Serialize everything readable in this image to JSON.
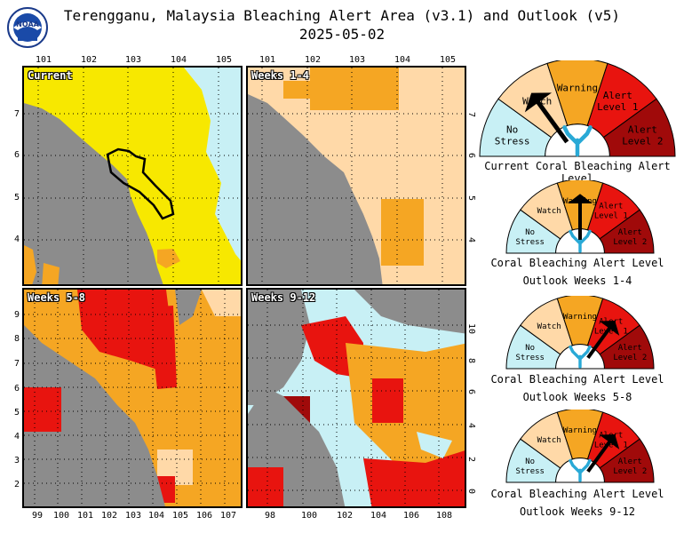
{
  "header": {
    "title": "Terengganu, Malaysia Bleaching Alert Area (v3.1) and Outlook (v5)",
    "date": "2025-05-02",
    "logo_text": "NOAA"
  },
  "colors": {
    "no_stress": "#c8f0f5",
    "watch": "#ffd9a8",
    "warning": "#f5a623",
    "alert1": "#e8140f",
    "alert2": "#a00a0a",
    "current_yellow": "#f7e800",
    "land": "#8c8c8c"
  },
  "panels": [
    {
      "label": "Current",
      "top_ticks": [
        "101",
        "102",
        "103",
        "104",
        "105"
      ],
      "left_ticks": [
        "7",
        "6",
        "5",
        "4"
      ]
    },
    {
      "label": "Weeks 1-4",
      "top_ticks": [
        "101",
        "102",
        "103",
        "104",
        "105"
      ],
      "right_ticks": [
        "7",
        "6",
        "5",
        "4"
      ]
    },
    {
      "label": "Weeks 5-8",
      "bottom_ticks": [
        "99",
        "100",
        "101",
        "102",
        "103",
        "104",
        "105",
        "106",
        "107"
      ],
      "left_ticks": [
        "9",
        "8",
        "7",
        "6",
        "5",
        "4",
        "3",
        "2"
      ]
    },
    {
      "label": "Weeks 9-12",
      "bottom_ticks": [
        "98",
        "100",
        "102",
        "104",
        "106",
        "108"
      ],
      "right_ticks": [
        "10",
        "8",
        "6",
        "4",
        "2",
        "0"
      ]
    }
  ],
  "gauges": [
    {
      "caption": [
        "Current Coral Bleaching Alert Level"
      ],
      "level_fraction": 0.3,
      "labels": {
        "no_stress": [
          "No",
          "Stress"
        ],
        "watch": [
          "Watch"
        ],
        "warning": [
          "Warning"
        ],
        "alert1": [
          "Alert",
          "Level 1"
        ],
        "alert2": [
          "Alert",
          "Level 2"
        ]
      }
    },
    {
      "caption": [
        "Coral Bleaching Alert Level",
        "Outlook Weeks 1-4"
      ],
      "level_fraction": 0.5,
      "labels": {
        "no_stress": [
          "No",
          "Stress"
        ],
        "watch": [
          "Watch"
        ],
        "warning": [
          "Warning"
        ],
        "alert1": [
          "Alert",
          "Level 1"
        ],
        "alert2": [
          "Alert",
          "Level 2"
        ]
      }
    },
    {
      "caption": [
        "Coral Bleaching Alert Level",
        "Outlook Weeks 5-8"
      ],
      "level_fraction": 0.7,
      "labels": {
        "no_stress": [
          "No",
          "Stress"
        ],
        "watch": [
          "Watch"
        ],
        "warning": [
          "Warning"
        ],
        "alert1": [
          "Alert",
          "Level 1"
        ],
        "alert2": [
          "Alert",
          "Level 2"
        ]
      }
    },
    {
      "caption": [
        "Coral Bleaching Alert Level",
        "Outlook Weeks 9-12"
      ],
      "level_fraction": 0.7,
      "labels": {
        "no_stress": [
          "No",
          "Stress"
        ],
        "watch": [
          "Watch"
        ],
        "warning": [
          "Warning"
        ],
        "alert1": [
          "Alert",
          "Level 1"
        ],
        "alert2": [
          "Alert",
          "Level 2"
        ]
      }
    }
  ]
}
